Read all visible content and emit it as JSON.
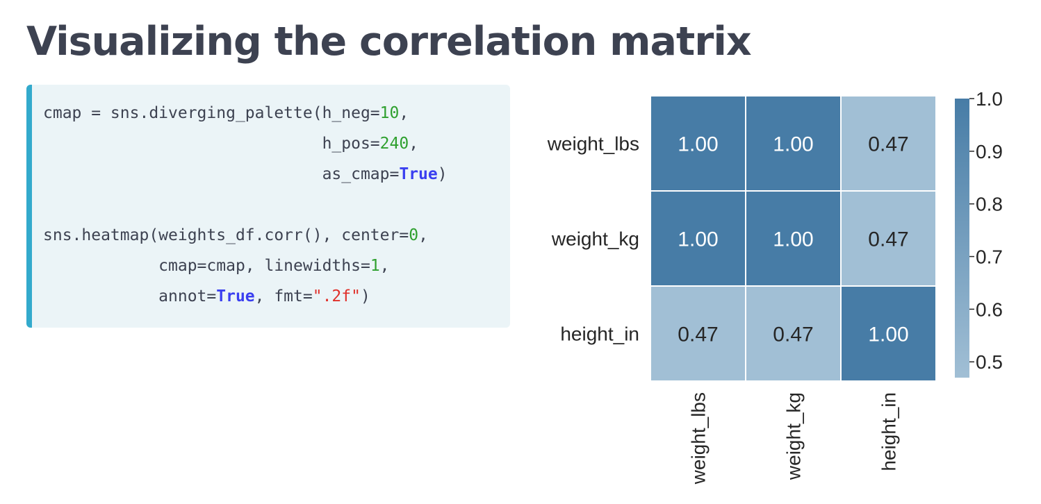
{
  "slide": {
    "title": "Visualizing the correlation matrix"
  },
  "code": {
    "lines": [
      [
        {
          "t": "cmap = sns.diverging_palette(h_neg=",
          "c": ""
        },
        {
          "t": "10",
          "c": "num"
        },
        {
          "t": ",",
          "c": ""
        }
      ],
      [
        {
          "t": "                             h_pos=",
          "c": ""
        },
        {
          "t": "240",
          "c": "num"
        },
        {
          "t": ",",
          "c": ""
        }
      ],
      [
        {
          "t": "                             as_cmap=",
          "c": ""
        },
        {
          "t": "True",
          "c": "kw"
        },
        {
          "t": ")",
          "c": ""
        }
      ],
      [],
      [
        {
          "t": "sns.heatmap(weights_df.corr(), center=",
          "c": ""
        },
        {
          "t": "0",
          "c": "num"
        },
        {
          "t": ",",
          "c": ""
        }
      ],
      [
        {
          "t": "            cmap=cmap, linewidths=",
          "c": ""
        },
        {
          "t": "1",
          "c": "num"
        },
        {
          "t": ",",
          "c": ""
        }
      ],
      [
        {
          "t": "            annot=",
          "c": ""
        },
        {
          "t": "True",
          "c": "kw"
        },
        {
          "t": ", fmt=",
          "c": ""
        },
        {
          "t": "\".2f\"",
          "c": "str"
        },
        {
          "t": ")",
          "c": ""
        }
      ]
    ]
  },
  "chart_data": {
    "type": "heatmap",
    "x_labels": [
      "weight_lbs",
      "weight_kg",
      "height_in"
    ],
    "y_labels": [
      "weight_lbs",
      "weight_kg",
      "height_in"
    ],
    "values": [
      [
        1.0,
        1.0,
        0.47
      ],
      [
        1.0,
        1.0,
        0.47
      ],
      [
        0.47,
        0.47,
        1.0
      ]
    ],
    "annotations": [
      [
        "1.00",
        "1.00",
        "0.47"
      ],
      [
        "1.00",
        "1.00",
        "0.47"
      ],
      [
        "0.47",
        "0.47",
        "1.00"
      ]
    ],
    "colorbar": {
      "ticks": [
        "1.0",
        "0.9",
        "0.8",
        "0.7",
        "0.6",
        "0.5"
      ],
      "tick_values": [
        1.0,
        0.9,
        0.8,
        0.7,
        0.6,
        0.5
      ],
      "range": [
        0.47,
        1.0
      ],
      "colors": {
        "low": "#a1bfd5",
        "high": "#477ca6"
      }
    },
    "linewidths": 1,
    "annotation_colors": {
      "on_dark": "#ffffff",
      "on_light": "#262626"
    }
  }
}
